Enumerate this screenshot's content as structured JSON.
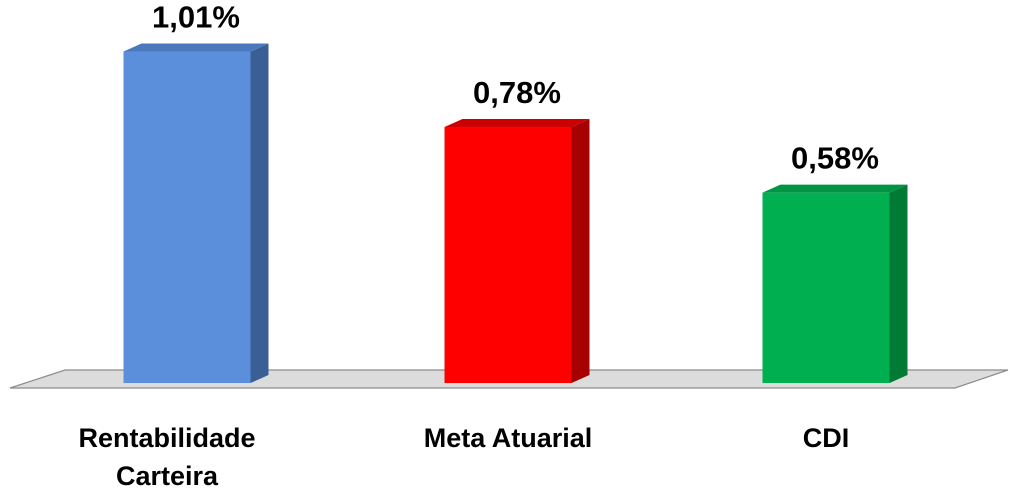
{
  "chart_data": {
    "type": "bar",
    "categories": [
      [
        "Rentabilidade",
        "Carteira"
      ],
      [
        "Meta Atuarial"
      ],
      [
        "CDI"
      ]
    ],
    "values": [
      1.01,
      0.78,
      0.58
    ],
    "data_labels": [
      "1,01%",
      "0,78%",
      "0,58%"
    ],
    "title": "",
    "xlabel": "",
    "ylabel": "",
    "ylim": [
      0,
      1.1
    ],
    "grid": false,
    "legend": "none",
    "style": "3d-column",
    "colors": [
      {
        "front": "#5b8fdb",
        "side": "#3a5f94",
        "top": "#4a78bd"
      },
      {
        "front": "#ff0000",
        "side": "#a60000",
        "top": "#cc0000"
      },
      {
        "front": "#00b050",
        "side": "#007a35",
        "top": "#009443"
      }
    ],
    "floor_color": "#dcdcdc"
  }
}
